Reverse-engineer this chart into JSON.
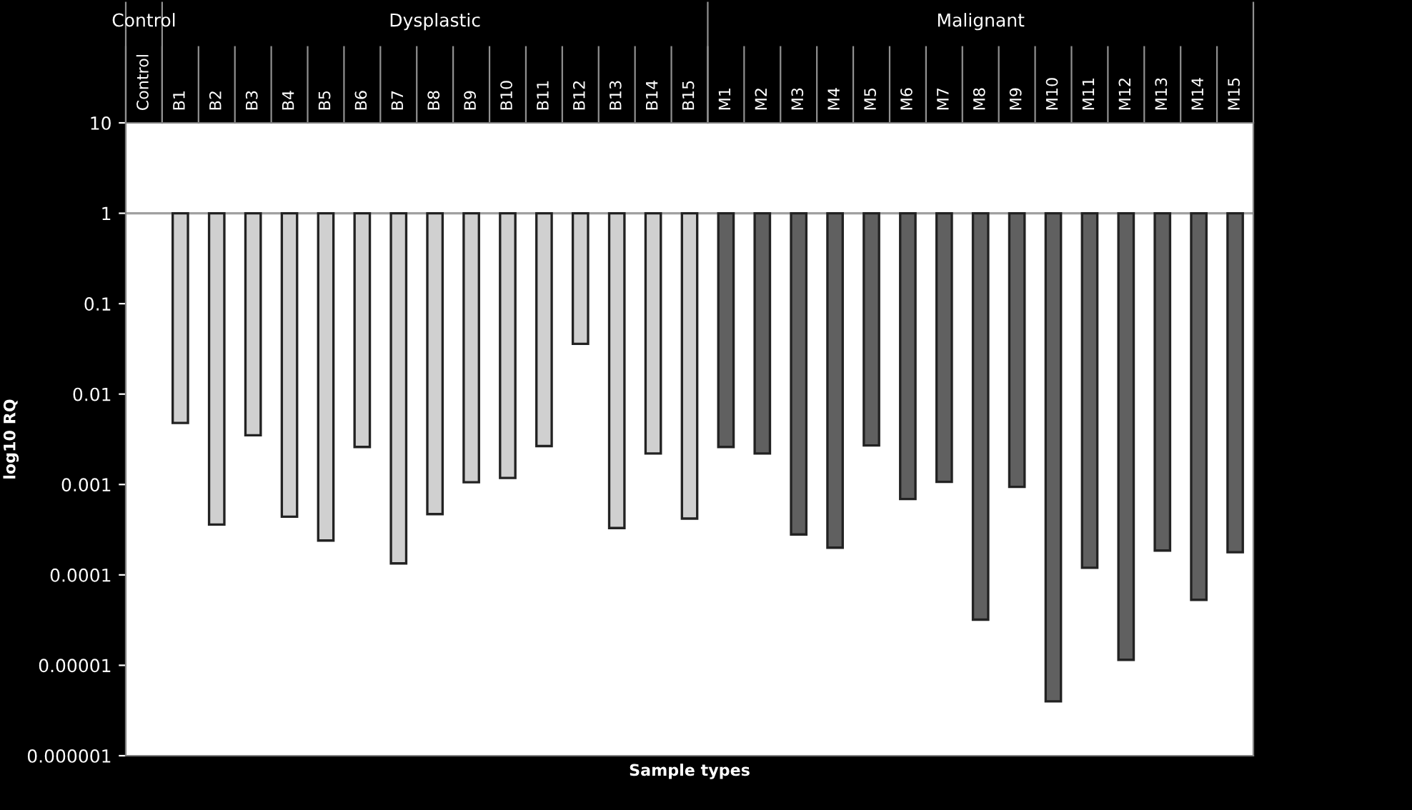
{
  "chart_data": {
    "type": "bar",
    "xlabel": "Sample types",
    "ylabel": "log10 RQ",
    "categories": [
      "Control",
      "B1",
      "B2",
      "B3",
      "B4",
      "B5",
      "B6",
      "B7",
      "B8",
      "B9",
      "B10",
      "B11",
      "B12",
      "B13",
      "B14",
      "B15",
      "M1",
      "M2",
      "M3",
      "M4",
      "M5",
      "M6",
      "M7",
      "M8",
      "M9",
      "M10",
      "M11",
      "M12",
      "M13",
      "M14",
      "M15"
    ],
    "base": [
      null,
      1,
      1,
      1,
      1,
      1,
      1,
      1,
      1,
      1,
      1,
      1,
      1,
      1,
      1,
      1,
      1,
      1,
      1,
      1,
      1,
      1,
      1,
      1,
      1,
      1,
      1,
      1,
      1,
      1,
      1
    ],
    "values": [
      null,
      -0.9952,
      -0.99964,
      -0.9965,
      -0.99956,
      -0.99976,
      -0.9974,
      -0.999866,
      -0.99953,
      -0.99894,
      -0.99882,
      -0.99734,
      -0.964,
      -0.99967,
      -0.9978,
      -0.99958,
      -0.9974,
      -0.9978,
      -0.99972,
      -0.9998,
      -0.9973,
      -0.99931,
      -0.99893,
      -0.999968,
      -0.99906,
      -0.999996,
      -0.99988,
      -0.9999885,
      -0.999814,
      -0.999947,
      -0.999822
    ],
    "colors": [
      "#d0d0d0",
      "#d0d0d0",
      "#d0d0d0",
      "#d0d0d0",
      "#d0d0d0",
      "#d0d0d0",
      "#d0d0d0",
      "#d0d0d0",
      "#d0d0d0",
      "#d0d0d0",
      "#d0d0d0",
      "#d0d0d0",
      "#d0d0d0",
      "#d0d0d0",
      "#d0d0d0",
      "#d0d0d0",
      "#606060",
      "#606060",
      "#606060",
      "#606060",
      "#606060",
      "#606060",
      "#606060",
      "#606060",
      "#606060",
      "#606060",
      "#606060",
      "#606060",
      "#606060",
      "#606060",
      "#606060"
    ],
    "log": "y",
    "ylim": [
      1e-06,
      10
    ],
    "yticks": [
      {
        "value": 1e-06,
        "label": "0.000001"
      },
      {
        "value": 1e-05,
        "label": "0.00001"
      },
      {
        "value": 0.0001,
        "label": "0.0001"
      },
      {
        "value": 0.001,
        "label": "0.001"
      },
      {
        "value": 0.01,
        "label": "0.01"
      },
      {
        "value": 0.1,
        "label": "0.1"
      },
      1,
      10
    ],
    "ref_lines": [
      {
        "axis": "y",
        "value": 1,
        "color": "#a0a0a0"
      }
    ],
    "annotations": [
      "Control",
      "Dysplastic",
      "Malignant"
    ],
    "grid": false,
    "legend": false
  }
}
